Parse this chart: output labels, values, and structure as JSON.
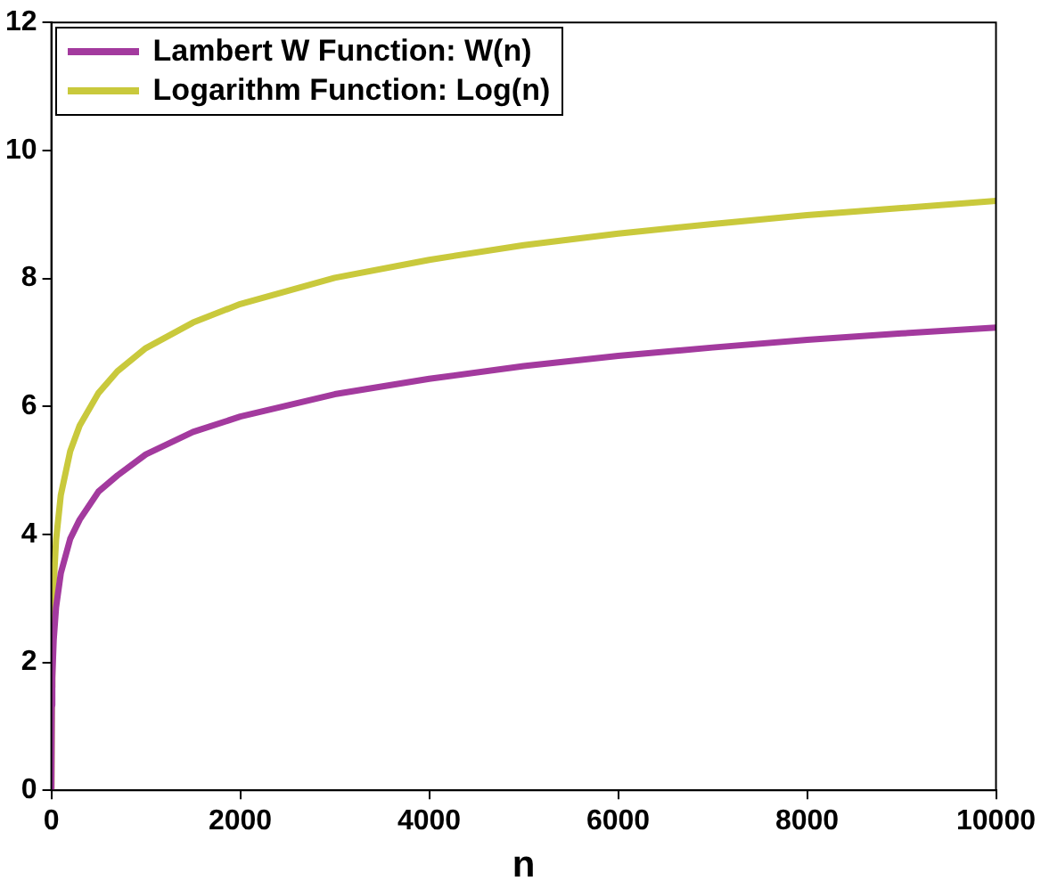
{
  "chart_data": {
    "type": "line",
    "xlabel": "n",
    "xlim": [
      0,
      10000
    ],
    "xticks": [
      0,
      2000,
      4000,
      6000,
      8000,
      10000
    ],
    "ylim": [
      0,
      12
    ],
    "yticks": [
      0,
      2,
      4,
      6,
      8,
      10,
      12
    ],
    "grid": false,
    "legend": "top left",
    "marker": "none",
    "line_style": "solid",
    "series": [
      {
        "name": "Lambert W Function: W(n)",
        "color": "#a33a9e",
        "x": [
          0,
          5,
          10,
          25,
          50,
          100,
          200,
          300,
          500,
          700,
          1000,
          1500,
          2000,
          3000,
          4000,
          5000,
          6000,
          7000,
          8000,
          9000,
          10000
        ],
        "values": [
          0,
          1.33,
          1.75,
          2.35,
          2.86,
          3.39,
          3.93,
          4.23,
          4.67,
          4.92,
          5.25,
          5.6,
          5.84,
          6.19,
          6.43,
          6.63,
          6.79,
          6.92,
          7.04,
          7.14,
          7.23
        ]
      },
      {
        "name": "Logarithm Function: Log(n)",
        "color": "#c9c93c",
        "x": [
          1,
          5,
          10,
          25,
          50,
          100,
          200,
          300,
          500,
          700,
          1000,
          1500,
          2000,
          3000,
          4000,
          5000,
          6000,
          7000,
          8000,
          9000,
          10000
        ],
        "values": [
          0,
          1.61,
          2.3,
          3.22,
          3.91,
          4.61,
          5.3,
          5.7,
          6.21,
          6.55,
          6.91,
          7.31,
          7.6,
          8.01,
          8.29,
          8.52,
          8.7,
          8.85,
          8.99,
          9.1,
          9.21
        ]
      }
    ]
  }
}
